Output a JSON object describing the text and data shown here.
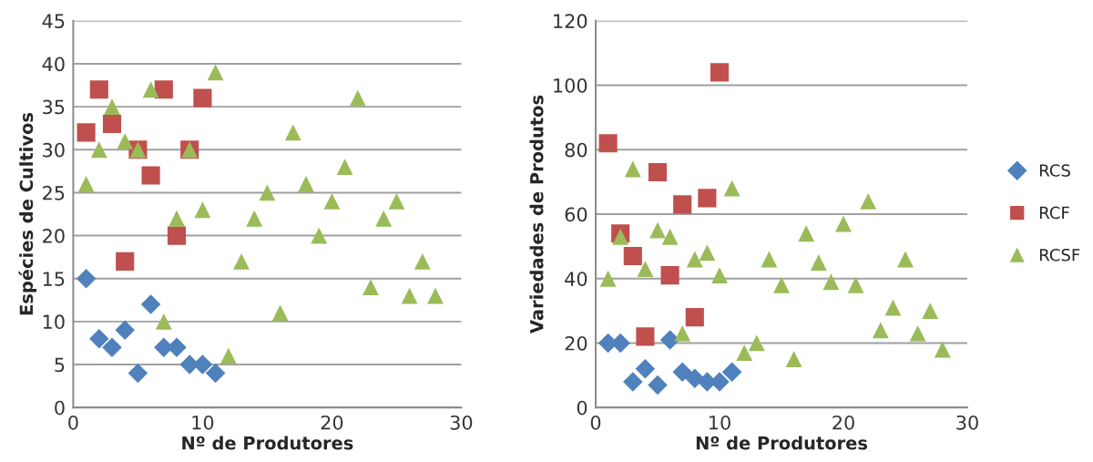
{
  "chart_data": [
    {
      "type": "scatter",
      "xlabel": "Nº de Produtores",
      "ylabel": "Espécies de Cultivos",
      "xlim": [
        0,
        30
      ],
      "xticks": [
        0,
        10,
        20,
        30
      ],
      "ylim": [
        0,
        45
      ],
      "yticks": [
        0,
        5,
        10,
        15,
        20,
        25,
        30,
        35,
        40,
        45
      ],
      "grid": "y",
      "series": [
        {
          "color": "#4f81bd",
          "marker": "diamond",
          "x": [
            1,
            2,
            3,
            4,
            5,
            6,
            7,
            8,
            9,
            10,
            11
          ],
          "values": [
            15,
            8,
            7,
            9,
            4,
            12,
            7,
            7,
            5,
            5,
            4
          ]
        },
        {
          "color": "#c0504d",
          "marker": "square",
          "x": [
            1,
            2,
            3,
            4,
            5,
            6,
            7,
            8,
            9,
            10
          ],
          "values": [
            32,
            37,
            33,
            17,
            30,
            27,
            37,
            20,
            30,
            36
          ]
        },
        {
          "color": "#9bbb59",
          "marker": "triangle",
          "x": [
            1,
            2,
            3,
            4,
            5,
            6,
            7,
            8,
            9,
            10,
            11,
            12,
            13,
            14,
            15,
            16,
            17,
            18,
            19,
            20,
            21,
            22,
            23,
            24,
            25,
            26,
            27,
            28
          ],
          "values": [
            26,
            30,
            35,
            31,
            30,
            37,
            10,
            22,
            30,
            23,
            39,
            6,
            17,
            22,
            25,
            11,
            32,
            26,
            20,
            24,
            28,
            36,
            14,
            22,
            24,
            13,
            17,
            13
          ]
        }
      ]
    },
    {
      "type": "scatter",
      "xlabel": "Nº de Produtores",
      "ylabel": "Variedades de Produtos",
      "xlim": [
        0,
        30
      ],
      "xticks": [
        0,
        10,
        20,
        30
      ],
      "ylim": [
        0,
        120
      ],
      "yticks": [
        0,
        20,
        40,
        60,
        80,
        100,
        120
      ],
      "grid": "y",
      "legend": "right",
      "series": [
        {
          "name": "RCS",
          "color": "#4f81bd",
          "marker": "diamond",
          "x": [
            1,
            2,
            3,
            4,
            5,
            6,
            7,
            8,
            9,
            10,
            11
          ],
          "values": [
            20,
            20,
            8,
            12,
            7,
            21,
            11,
            9,
            8,
            8,
            11
          ]
        },
        {
          "name": "RCF",
          "color": "#c0504d",
          "marker": "square",
          "x": [
            1,
            2,
            3,
            4,
            5,
            6,
            7,
            8,
            9,
            10
          ],
          "values": [
            82,
            54,
            47,
            22,
            73,
            41,
            63,
            28,
            65,
            104
          ]
        },
        {
          "name": "RCSF",
          "color": "#9bbb59",
          "marker": "triangle",
          "x": [
            1,
            2,
            3,
            4,
            5,
            6,
            7,
            8,
            9,
            10,
            11,
            12,
            13,
            14,
            15,
            16,
            17,
            18,
            19,
            20,
            21,
            22,
            23,
            24,
            25,
            26,
            27,
            28
          ],
          "values": [
            40,
            53,
            74,
            43,
            55,
            53,
            23,
            46,
            48,
            41,
            68,
            17,
            20,
            46,
            38,
            15,
            54,
            45,
            39,
            57,
            38,
            64,
            24,
            31,
            46,
            23,
            30,
            18
          ]
        }
      ]
    }
  ]
}
